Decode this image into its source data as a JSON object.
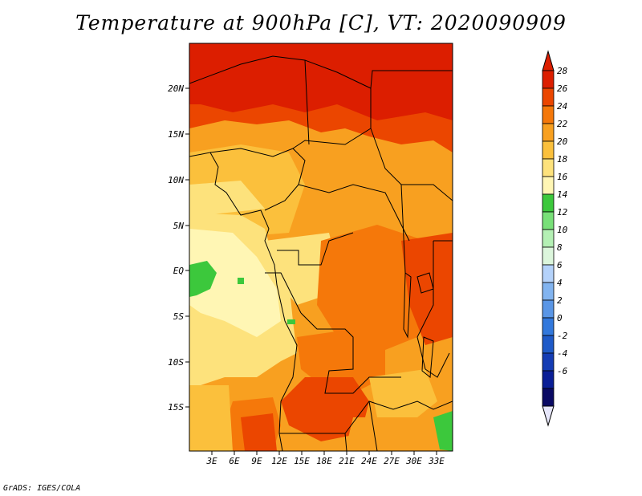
{
  "title": "Temperature at 900hPa [C], VT: 2020090909",
  "credit": "GrADS: IGES/COLA",
  "map": {
    "lon_labels": [
      "3E",
      "6E",
      "9E",
      "12E",
      "15E",
      "18E",
      "21E",
      "24E",
      "27E",
      "30E",
      "33E"
    ],
    "lat_labels": [
      "20N",
      "15N",
      "10N",
      "5N",
      "EQ",
      "5S",
      "10S",
      "15S"
    ]
  },
  "colorbar": {
    "labels": [
      "28",
      "26",
      "24",
      "22",
      "20",
      "18",
      "16",
      "14",
      "12",
      "10",
      "8",
      "6",
      "4",
      "2",
      "0",
      "-2",
      "-4",
      "-6"
    ],
    "colors": [
      "#dc1e00",
      "#eb4600",
      "#f5780a",
      "#f8a020",
      "#fbc03c",
      "#fde27c",
      "#fff6b4",
      "#3cc83c",
      "#78e078",
      "#b4f0b4",
      "#dcf6dc",
      "#b4d2fa",
      "#82b4f0",
      "#5a96e6",
      "#3278dc",
      "#1e5ac8",
      "#143cb4",
      "#0a1e96",
      "#0a0a64"
    ],
    "over_color": "#dc1e00",
    "under_color": "#e6e6fa"
  }
}
